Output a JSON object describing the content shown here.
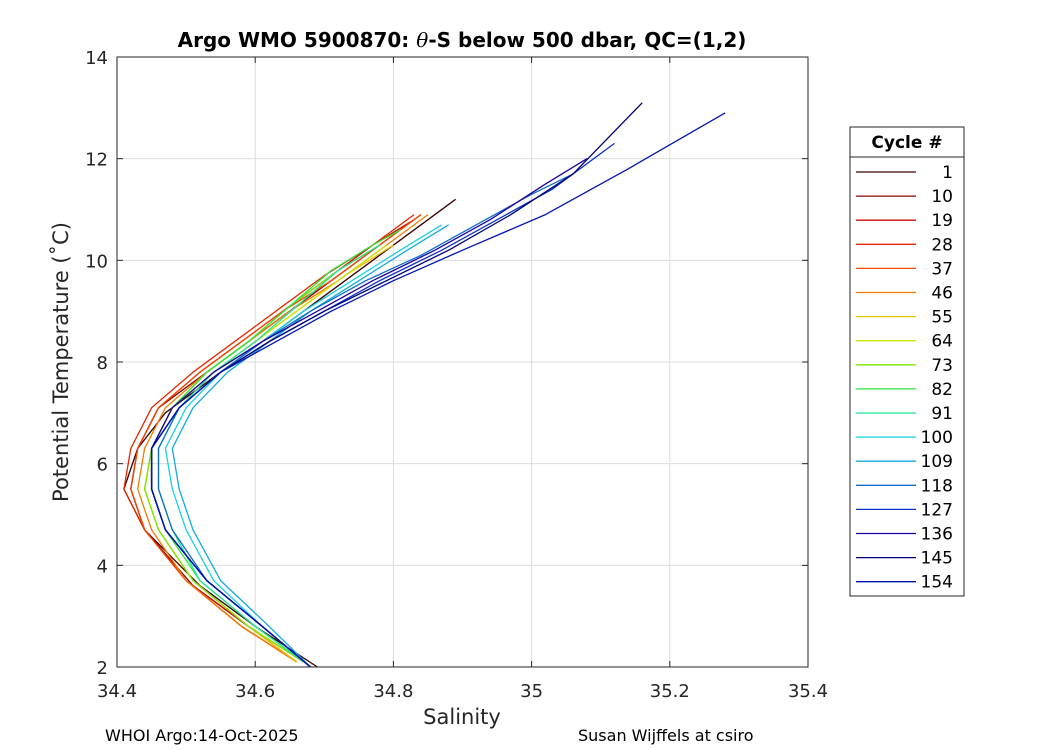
{
  "chart_data": {
    "type": "line",
    "title_prefix": "Argo WMO 5900870: ",
    "title_symbol": "θ",
    "title_suffix": "-S below 500 dbar,  QC=(1,2)",
    "xlabel": "Salinity",
    "ylabel": "Potential Temperature (˚C)",
    "xlim": [
      34.4,
      35.4
    ],
    "ylim": [
      2,
      14
    ],
    "xticks": [
      "34.4",
      "34.6",
      "34.8",
      "35",
      "35.2",
      "35.4"
    ],
    "yticks": [
      "2",
      "4",
      "6",
      "8",
      "10",
      "12",
      "14"
    ],
    "grid": true,
    "legend_title": "Cycle #",
    "legend_position": "right",
    "series": [
      {
        "name": "1",
        "color": "#3c0000",
        "x": [
          34.69,
          34.6,
          34.52,
          34.44,
          34.41,
          34.43,
          34.47,
          34.53,
          34.59,
          34.65,
          34.72,
          34.79,
          34.85,
          34.89
        ],
        "y": [
          2.0,
          2.8,
          3.6,
          4.7,
          5.5,
          6.3,
          7.0,
          7.6,
          8.2,
          8.8,
          9.5,
          10.2,
          10.8,
          11.2
        ]
      },
      {
        "name": "10",
        "color": "#8c0000",
        "x": [
          34.67,
          34.59,
          34.51,
          34.44,
          34.42,
          34.43,
          34.46,
          34.52,
          34.58,
          34.64,
          34.71,
          34.78,
          34.84
        ],
        "y": [
          2.1,
          2.8,
          3.6,
          4.7,
          5.5,
          6.3,
          7.1,
          7.7,
          8.3,
          8.9,
          9.6,
          10.3,
          10.9
        ]
      },
      {
        "name": "19",
        "color": "#cc0a00",
        "x": [
          34.66,
          34.59,
          34.5,
          34.44,
          34.42,
          34.43,
          34.46,
          34.52,
          34.58,
          34.64,
          34.7,
          34.77,
          34.83
        ],
        "y": [
          2.1,
          2.8,
          3.7,
          4.7,
          5.5,
          6.3,
          7.1,
          7.8,
          8.4,
          9.0,
          9.6,
          10.3,
          10.8
        ]
      },
      {
        "name": "28",
        "color": "#e62800",
        "x": [
          34.66,
          34.58,
          34.5,
          34.44,
          34.41,
          34.42,
          34.45,
          34.51,
          34.57,
          34.63,
          34.7,
          34.77,
          34.83
        ],
        "y": [
          2.1,
          2.8,
          3.7,
          4.7,
          5.5,
          6.3,
          7.1,
          7.8,
          8.4,
          9.0,
          9.7,
          10.3,
          10.9
        ]
      },
      {
        "name": "37",
        "color": "#f24a00",
        "x": [
          34.66,
          34.58,
          34.5,
          34.44,
          34.42,
          34.43,
          34.46,
          34.52,
          34.58,
          34.64,
          34.71,
          34.78,
          34.84
        ],
        "y": [
          2.1,
          2.8,
          3.7,
          4.7,
          5.5,
          6.3,
          7.1,
          7.8,
          8.4,
          9.0,
          9.6,
          10.3,
          10.9
        ]
      },
      {
        "name": "46",
        "color": "#f07c00",
        "x": [
          34.66,
          34.58,
          34.5,
          34.45,
          34.43,
          34.44,
          34.47,
          34.53,
          34.59,
          34.65,
          34.72,
          34.79,
          34.85
        ],
        "y": [
          2.1,
          2.8,
          3.7,
          4.7,
          5.5,
          6.3,
          7.1,
          7.8,
          8.4,
          9.0,
          9.6,
          10.3,
          10.9
        ]
      },
      {
        "name": "55",
        "color": "#e6c800",
        "x": [
          34.66,
          34.59,
          34.51,
          34.46,
          34.44,
          34.45,
          34.48,
          34.54,
          34.6,
          34.66,
          34.73,
          34.8
        ],
        "y": [
          2.1,
          2.8,
          3.7,
          4.7,
          5.5,
          6.3,
          7.1,
          7.8,
          8.4,
          9.0,
          9.7,
          10.3
        ]
      },
      {
        "name": "64",
        "color": "#c8e600",
        "x": [
          34.67,
          34.59,
          34.51,
          34.46,
          34.44,
          34.45,
          34.48,
          34.54,
          34.6,
          34.66,
          34.73,
          34.79
        ],
        "y": [
          2.1,
          2.8,
          3.7,
          4.7,
          5.5,
          6.3,
          7.1,
          7.8,
          8.4,
          9.0,
          9.7,
          10.3
        ]
      },
      {
        "name": "73",
        "color": "#7ee600",
        "x": [
          34.67,
          34.59,
          34.51,
          34.46,
          34.44,
          34.45,
          34.48,
          34.53,
          34.59,
          34.65,
          34.72,
          34.78
        ],
        "y": [
          2.1,
          2.8,
          3.7,
          4.7,
          5.5,
          6.3,
          7.1,
          7.8,
          8.4,
          9.1,
          9.8,
          10.3
        ]
      },
      {
        "name": "82",
        "color": "#2ee63c",
        "x": [
          34.67,
          34.6,
          34.52,
          34.47,
          34.45,
          34.45,
          34.48,
          34.53,
          34.59,
          34.65,
          34.71,
          34.77,
          34.81
        ],
        "y": [
          2.1,
          2.8,
          3.7,
          4.7,
          5.5,
          6.3,
          7.1,
          7.8,
          8.4,
          9.1,
          9.8,
          10.3,
          10.6
        ]
      },
      {
        "name": "91",
        "color": "#1ee696",
        "x": [
          34.67,
          34.6,
          34.52,
          34.48,
          34.46,
          34.46,
          34.49,
          34.54,
          34.6,
          34.66,
          34.72,
          34.78
        ],
        "y": [
          2.1,
          2.8,
          3.7,
          4.7,
          5.5,
          6.3,
          7.1,
          7.8,
          8.4,
          9.1,
          9.8,
          10.3
        ]
      },
      {
        "name": "100",
        "color": "#19d2dc",
        "x": [
          34.68,
          34.61,
          34.54,
          34.5,
          34.48,
          34.47,
          34.5,
          34.55,
          34.61,
          34.67,
          34.74,
          34.81,
          34.87
        ],
        "y": [
          2.0,
          2.8,
          3.7,
          4.7,
          5.5,
          6.3,
          7.1,
          7.8,
          8.4,
          9.0,
          9.6,
          10.2,
          10.7
        ]
      },
      {
        "name": "109",
        "color": "#14aadc",
        "x": [
          34.68,
          34.62,
          34.55,
          34.51,
          34.49,
          34.48,
          34.51,
          34.56,
          34.62,
          34.68,
          34.75,
          34.82,
          34.88
        ],
        "y": [
          2.0,
          2.8,
          3.7,
          4.7,
          5.5,
          6.3,
          7.1,
          7.8,
          8.4,
          9.0,
          9.6,
          10.2,
          10.7
        ]
      },
      {
        "name": "118",
        "color": "#0a6ec8",
        "x": [
          34.68,
          34.61,
          34.53,
          34.48,
          34.46,
          34.46,
          34.49,
          34.55,
          34.61,
          34.68,
          34.76,
          34.84,
          34.92,
          35.0,
          35.06
        ],
        "y": [
          2.0,
          2.8,
          3.7,
          4.7,
          5.5,
          6.3,
          7.1,
          7.8,
          8.4,
          9.0,
          9.6,
          10.1,
          10.7,
          11.3,
          11.7
        ]
      },
      {
        "name": "127",
        "color": "#0a32c8",
        "x": [
          34.68,
          34.61,
          34.53,
          34.47,
          34.45,
          34.45,
          34.49,
          34.55,
          34.62,
          34.7,
          34.78,
          34.87,
          34.95,
          35.03,
          35.12
        ],
        "y": [
          2.0,
          2.8,
          3.7,
          4.7,
          5.5,
          6.3,
          7.1,
          7.8,
          8.4,
          9.0,
          9.6,
          10.2,
          10.8,
          11.4,
          12.3
        ]
      },
      {
        "name": "136",
        "color": "#1e00a0",
        "x": [
          34.68,
          34.61,
          34.53,
          34.47,
          34.45,
          34.45,
          34.48,
          34.54,
          34.61,
          34.69,
          34.77,
          34.86,
          34.94,
          35.02,
          35.08
        ],
        "y": [
          2.0,
          2.8,
          3.7,
          4.7,
          5.5,
          6.3,
          7.1,
          7.8,
          8.4,
          9.0,
          9.6,
          10.2,
          10.8,
          11.5,
          12.0
        ]
      },
      {
        "name": "145",
        "color": "#000078",
        "x": [
          34.68,
          34.61,
          34.53,
          34.47,
          34.45,
          34.45,
          34.49,
          34.55,
          34.62,
          34.7,
          34.79,
          34.88,
          34.97,
          35.06,
          35.16
        ],
        "y": [
          2.0,
          2.8,
          3.7,
          4.7,
          5.5,
          6.3,
          7.1,
          7.8,
          8.4,
          9.0,
          9.6,
          10.2,
          10.9,
          11.7,
          13.1
        ]
      },
      {
        "name": "154",
        "color": "#0014b4",
        "x": [
          34.68,
          34.61,
          34.53,
          34.47,
          34.45,
          34.45,
          34.49,
          34.55,
          34.63,
          34.71,
          34.8,
          34.9,
          35.02,
          35.14,
          35.28
        ],
        "y": [
          2.0,
          2.8,
          3.7,
          4.7,
          5.5,
          6.3,
          7.1,
          7.8,
          8.4,
          9.0,
          9.6,
          10.2,
          10.9,
          11.8,
          12.9
        ]
      }
    ]
  },
  "footer": {
    "left": "WHOI Argo:14-Oct-2025",
    "right": "Susan Wijffels at csiro"
  }
}
